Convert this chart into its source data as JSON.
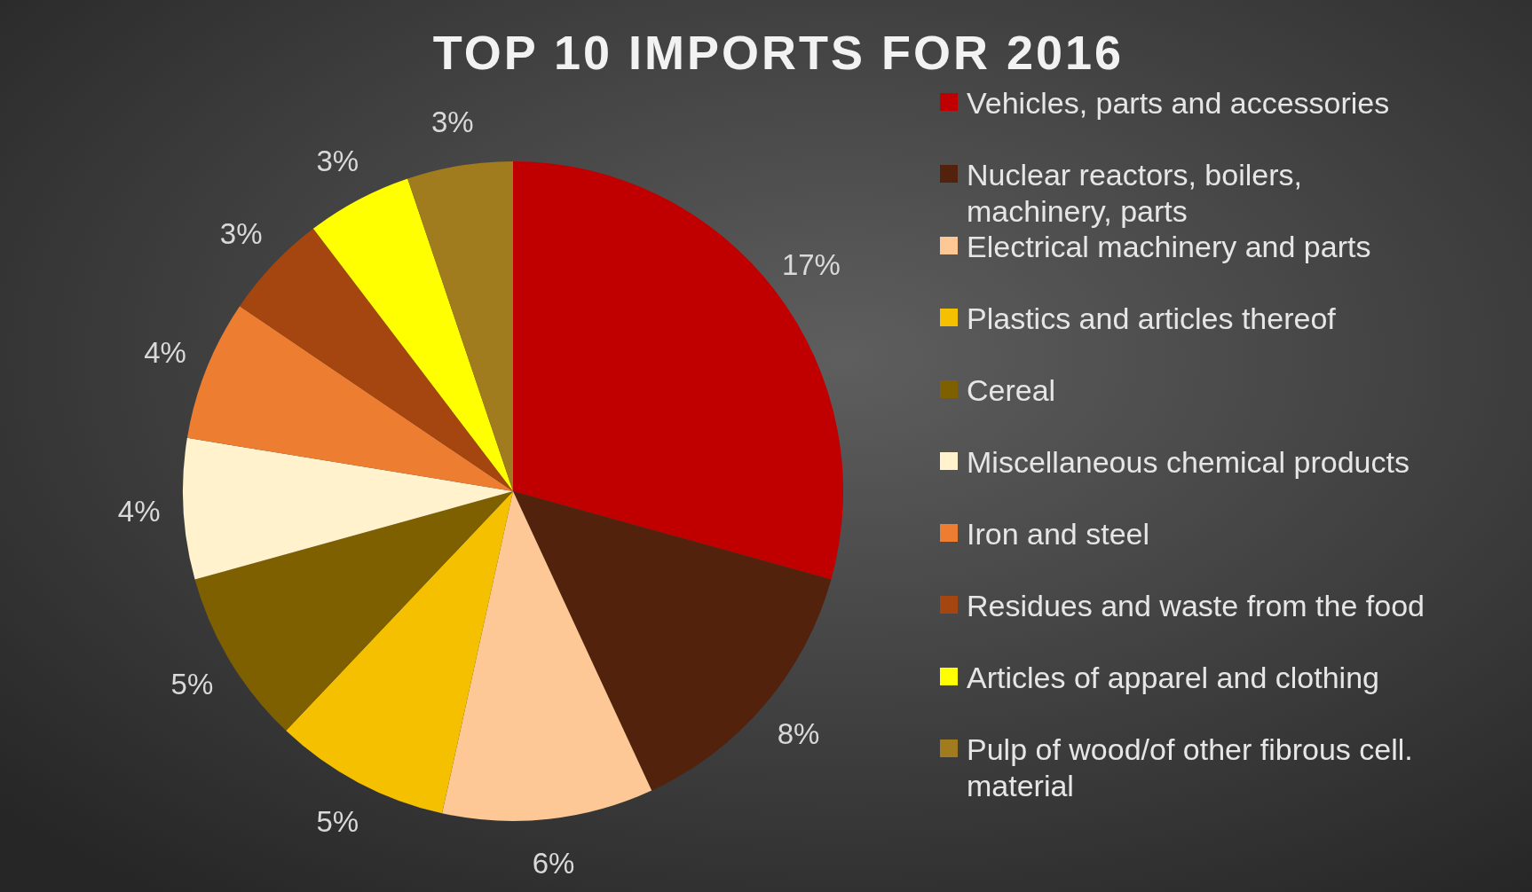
{
  "chart_data": {
    "type": "pie",
    "title": "TOP 10 IMPORTS FOR 2016",
    "categories": [
      "Vehicles, parts and accessories",
      "Nuclear reactors, boilers, machinery, parts",
      "Electrical machinery and parts",
      "Plastics and articles thereof",
      "Cereal",
      "Miscellaneous chemical products",
      "Iron and steel",
      "Residues and waste from the food",
      "Articles of apparel and clothing",
      "Pulp of wood/of other fibrous cell. material"
    ],
    "values": [
      17,
      8,
      6,
      5,
      5,
      4,
      4,
      3,
      3,
      3
    ],
    "value_labels": [
      "17%",
      "8%",
      "6%",
      "5%",
      "5%",
      "4%",
      "4%",
      "3%",
      "3%",
      "3%"
    ],
    "colors": [
      "#c00000",
      "#52220c",
      "#fdc896",
      "#f5c000",
      "#7f6000",
      "#fff2cc",
      "#ed7d31",
      "#a5450f",
      "#ffff00",
      "#a07c1e"
    ],
    "legend": "right"
  }
}
